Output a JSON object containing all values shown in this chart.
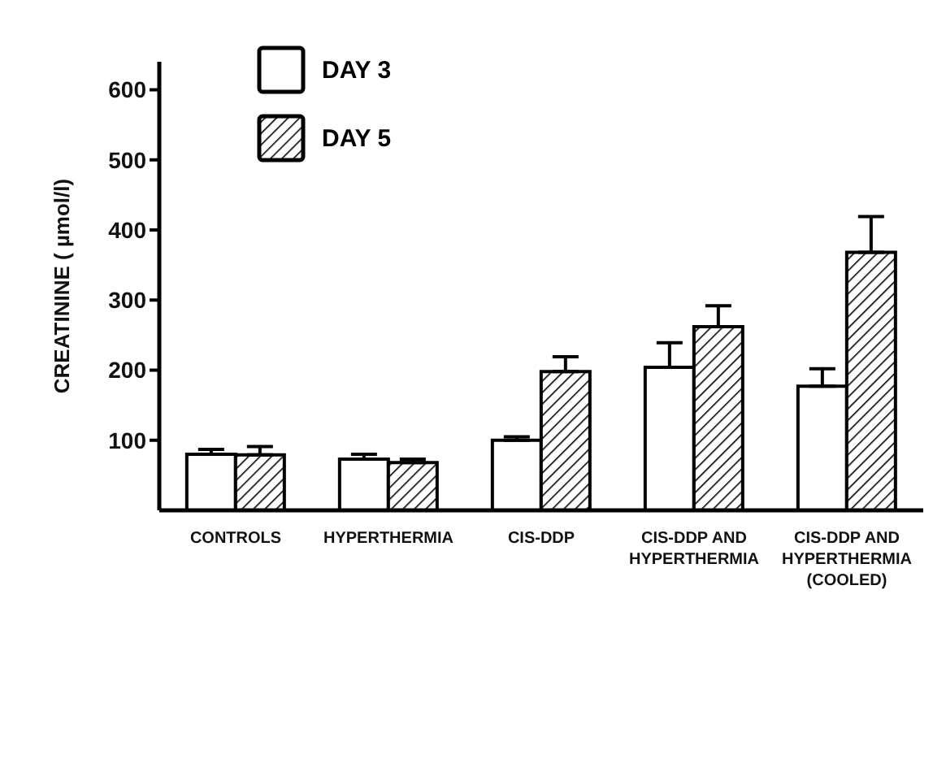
{
  "chart_data": {
    "type": "bar",
    "ylabel": "CREATININE ( µmol/l)",
    "categories": [
      "CONTROLS",
      "HYPERTHERMIA",
      "CIS-DDP",
      "CIS-DDP AND\nHYPERTHERMIA",
      "CIS-DDP AND\nHYPERTHERMIA\n(COOLED)"
    ],
    "series": [
      {
        "name": "DAY 3",
        "color": "#ffffff",
        "values": [
          80,
          73,
          100,
          204,
          177
        ],
        "errors": [
          [
            80,
            87
          ],
          [
            73,
            80
          ],
          [
            100,
            105
          ],
          [
            204,
            239
          ],
          [
            177,
            202
          ]
        ]
      },
      {
        "name": "DAY 5",
        "color": "#000000",
        "values": [
          79,
          68,
          198,
          262,
          368
        ],
        "errors": [
          [
            79,
            91
          ],
          [
            68,
            73
          ],
          [
            198,
            219
          ],
          [
            262,
            292
          ],
          [
            368,
            419
          ]
        ]
      }
    ],
    "ylim": [
      0,
      640
    ],
    "yticks": [
      100,
      200,
      300,
      400,
      500,
      600
    ],
    "legend": "top left"
  }
}
